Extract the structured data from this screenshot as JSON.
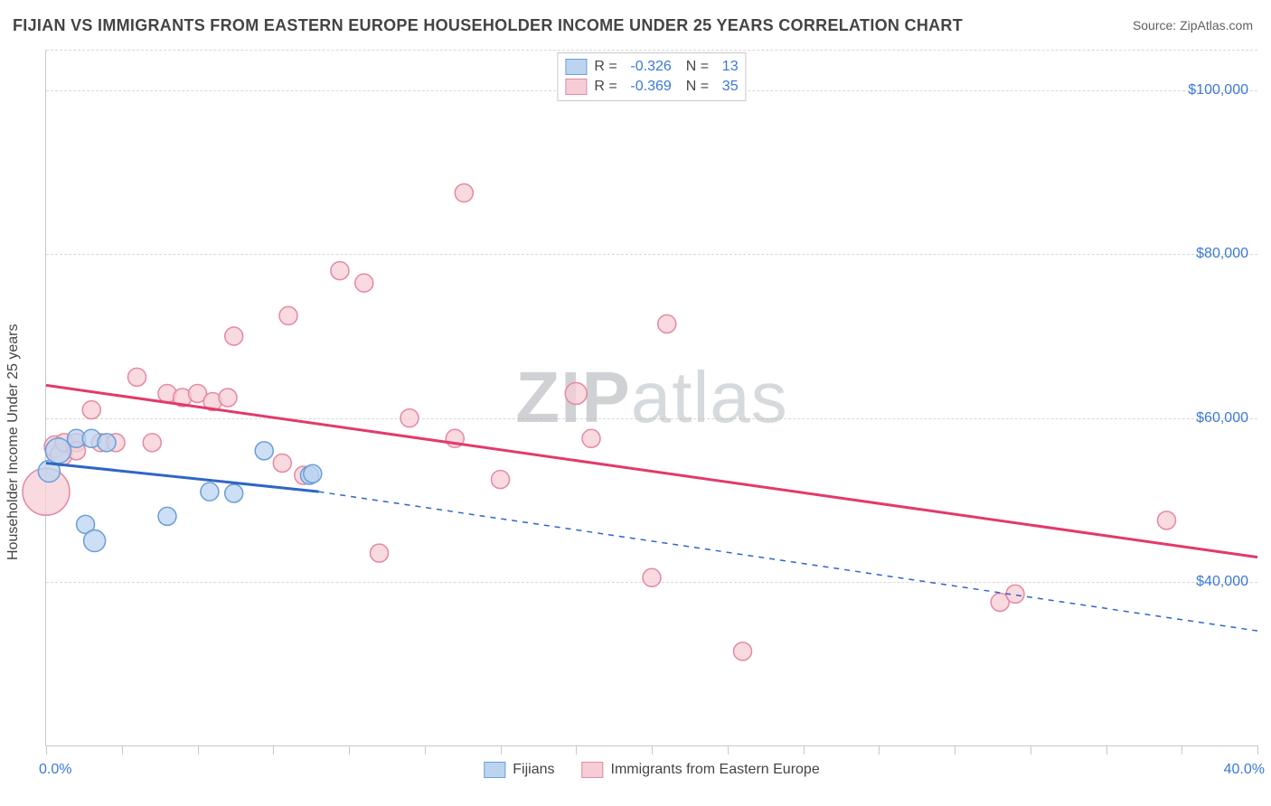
{
  "title": "FIJIAN VS IMMIGRANTS FROM EASTERN EUROPE HOUSEHOLDER INCOME UNDER 25 YEARS CORRELATION CHART",
  "source": "Source: ZipAtlas.com",
  "y_axis_label": "Householder Income Under 25 years",
  "watermark_bold": "ZIP",
  "watermark_light": "atlas",
  "chart": {
    "type": "scatter",
    "background_color": "#ffffff",
    "grid_color": "#d8d8d8",
    "axis_color": "#c8c8c8",
    "tick_label_color": "#3b78d8",
    "xlim": [
      0,
      40
    ],
    "ylim": [
      20000,
      105000
    ],
    "y_ticks": [
      40000,
      60000,
      80000,
      100000
    ],
    "y_tick_labels": [
      "$40,000",
      "$60,000",
      "$80,000",
      "$100,000"
    ],
    "x_ticks": [
      0,
      2.5,
      5,
      7.5,
      10,
      12.5,
      15,
      17.5,
      20,
      22.5,
      25,
      27.5,
      30,
      32.5,
      35,
      37.5,
      40
    ],
    "x_tick_labels": {
      "0": "0.0%",
      "40": "40.0%"
    },
    "series": [
      {
        "name": "Fijians",
        "color_fill": "#bcd4f0",
        "color_stroke": "#6a9ed8",
        "R": "-0.326",
        "N": "13",
        "trend": {
          "x1": 0,
          "y1": 54500,
          "x2": 9,
          "y2": 51000,
          "dash_x2": 40,
          "dash_y2": 34000,
          "color": "#2f66c4"
        },
        "points": [
          {
            "x": 0.1,
            "y": 53500,
            "r": 12
          },
          {
            "x": 0.4,
            "y": 56000,
            "r": 14
          },
          {
            "x": 1.0,
            "y": 57500,
            "r": 10
          },
          {
            "x": 1.5,
            "y": 57500,
            "r": 10
          },
          {
            "x": 2.0,
            "y": 57000,
            "r": 10
          },
          {
            "x": 1.3,
            "y": 47000,
            "r": 10
          },
          {
            "x": 1.6,
            "y": 45000,
            "r": 12
          },
          {
            "x": 4.0,
            "y": 48000,
            "r": 10
          },
          {
            "x": 5.4,
            "y": 51000,
            "r": 10
          },
          {
            "x": 6.2,
            "y": 50800,
            "r": 10
          },
          {
            "x": 7.2,
            "y": 56000,
            "r": 10
          },
          {
            "x": 8.7,
            "y": 53000,
            "r": 10
          },
          {
            "x": 8.8,
            "y": 53200,
            "r": 10
          }
        ]
      },
      {
        "name": "Immigrants from Eastern Europe",
        "color_fill": "#f6cdd6",
        "color_stroke": "#e588a0",
        "R": "-0.369",
        "N": "35",
        "trend": {
          "x1": 0,
          "y1": 64000,
          "x2": 40,
          "y2": 43000,
          "color": "#e23a6a"
        },
        "points": [
          {
            "x": 0.0,
            "y": 51000,
            "r": 26
          },
          {
            "x": 0.3,
            "y": 56500,
            "r": 12
          },
          {
            "x": 0.5,
            "y": 55500,
            "r": 12
          },
          {
            "x": 0.6,
            "y": 57000,
            "r": 10
          },
          {
            "x": 1.0,
            "y": 57000,
            "r": 10
          },
          {
            "x": 1.0,
            "y": 56000,
            "r": 10
          },
          {
            "x": 1.5,
            "y": 61000,
            "r": 10
          },
          {
            "x": 1.8,
            "y": 57000,
            "r": 10
          },
          {
            "x": 2.3,
            "y": 57000,
            "r": 10
          },
          {
            "x": 3.0,
            "y": 65000,
            "r": 10
          },
          {
            "x": 3.5,
            "y": 57000,
            "r": 10
          },
          {
            "x": 4.0,
            "y": 63000,
            "r": 10
          },
          {
            "x": 4.5,
            "y": 62500,
            "r": 10
          },
          {
            "x": 5.0,
            "y": 63000,
            "r": 10
          },
          {
            "x": 5.5,
            "y": 62000,
            "r": 10
          },
          {
            "x": 6.0,
            "y": 62500,
            "r": 10
          },
          {
            "x": 6.2,
            "y": 70000,
            "r": 10
          },
          {
            "x": 7.8,
            "y": 54500,
            "r": 10
          },
          {
            "x": 8.0,
            "y": 72500,
            "r": 10
          },
          {
            "x": 8.5,
            "y": 53000,
            "r": 10
          },
          {
            "x": 9.7,
            "y": 78000,
            "r": 10
          },
          {
            "x": 10.5,
            "y": 76500,
            "r": 10
          },
          {
            "x": 11.0,
            "y": 43500,
            "r": 10
          },
          {
            "x": 12.0,
            "y": 60000,
            "r": 10
          },
          {
            "x": 13.5,
            "y": 57500,
            "r": 10
          },
          {
            "x": 13.8,
            "y": 87500,
            "r": 10
          },
          {
            "x": 15.0,
            "y": 52500,
            "r": 10
          },
          {
            "x": 17.5,
            "y": 63000,
            "r": 12
          },
          {
            "x": 18.0,
            "y": 57500,
            "r": 10
          },
          {
            "x": 20.5,
            "y": 71500,
            "r": 10
          },
          {
            "x": 20.0,
            "y": 40500,
            "r": 10
          },
          {
            "x": 23.0,
            "y": 31500,
            "r": 10
          },
          {
            "x": 31.5,
            "y": 37500,
            "r": 10
          },
          {
            "x": 32.0,
            "y": 38500,
            "r": 10
          },
          {
            "x": 37.0,
            "y": 47500,
            "r": 10
          }
        ]
      }
    ]
  }
}
